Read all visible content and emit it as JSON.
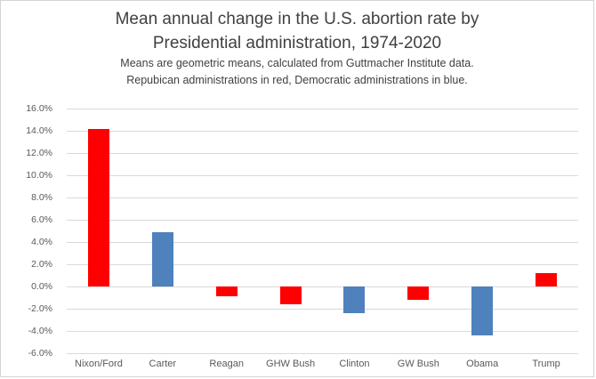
{
  "title": {
    "line1": "Mean annual change in the U.S. abortion rate by",
    "line2": "Presidential administration, 1974-2020"
  },
  "subtitle": {
    "line1": "Means are geometric means, calculated from Guttmacher Institute data.",
    "line2": "Repubican administrations in red, Democratic administrations in blue."
  },
  "chart_data": {
    "type": "bar",
    "title": "Mean annual change in the U.S. abortion rate by Presidential administration, 1974-2020",
    "subtitle": "Means are geometric means, calculated from Guttmacher Institute data. Repubican administrations in red, Democratic administrations in blue.",
    "categories": [
      "Nixon/Ford",
      "Carter",
      "Reagan",
      "GHW Bush",
      "Clinton",
      "GW Bush",
      "Obama",
      "Trump"
    ],
    "values": [
      14.2,
      4.9,
      -0.9,
      -1.6,
      -2.4,
      -1.2,
      -4.4,
      1.2
    ],
    "parties": [
      "republican",
      "democratic",
      "republican",
      "republican",
      "democratic",
      "republican",
      "democratic",
      "republican"
    ],
    "unit": "percent",
    "xlabel": "",
    "ylabel": "",
    "ylim": [
      -6,
      16
    ],
    "y_ticks": [
      "16.0%",
      "14.0%",
      "12.0%",
      "10.0%",
      "8.0%",
      "6.0%",
      "4.0%",
      "2.0%",
      "0.0%",
      "-2.0%",
      "-4.0%",
      "-6.0%"
    ],
    "grid": true,
    "legend": "none",
    "colors": {
      "republican": "#FF0000",
      "democratic": "#4F81BD",
      "gridline": "#D9D9D9",
      "axis_text": "#595959",
      "title_text": "#404040"
    }
  }
}
